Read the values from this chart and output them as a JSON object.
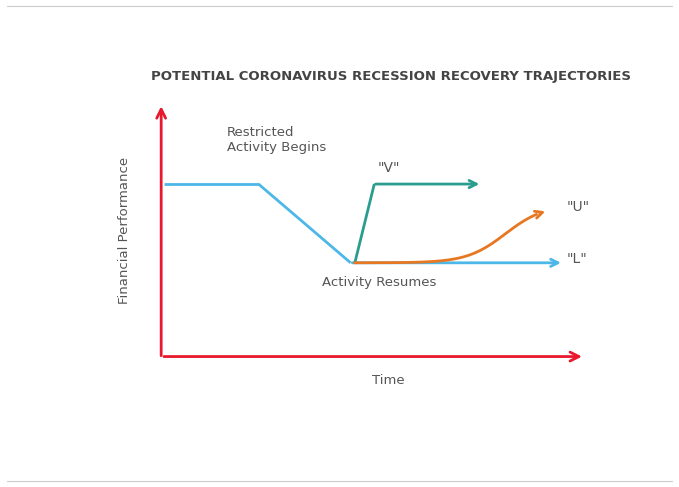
{
  "title": "POTENTIAL CORONAVIRUS RECESSION RECOVERY TRAJECTORIES",
  "xlabel": "Time",
  "ylabel": "Financial Performance",
  "background_color": "#ffffff",
  "title_fontsize": 9.5,
  "label_fontsize": 9.5,
  "axis_color": "#e8192c",
  "blue_line_color": "#4db8e8",
  "teal_line_color": "#2a9d8f",
  "orange_line_color": "#e87722",
  "annotation_restricted": "Restricted\nActivity Begins",
  "annotation_resumes": "Activity Resumes",
  "annotation_v": "\"V\"",
  "annotation_u": "\"U\"",
  "annotation_l": "\"L\"",
  "lw": 2.0
}
